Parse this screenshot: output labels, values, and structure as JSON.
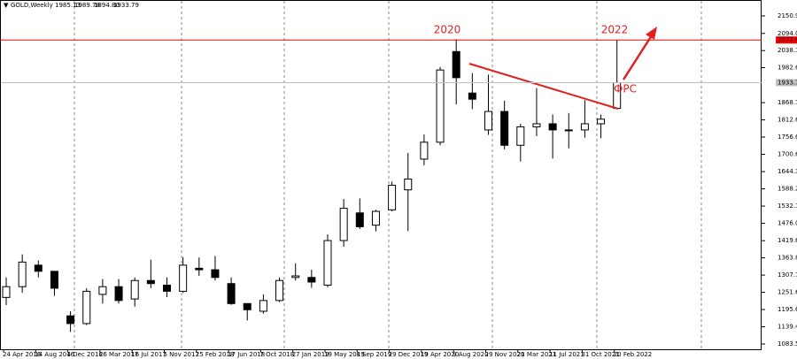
{
  "chart_data": {
    "type": "candlestick",
    "title": "GOLD,Weekly",
    "quote": [
      1985.13,
      1989.78,
      {
        "value": 1894.8,
        "label": "1894.80"
      },
      1933.79
    ],
    "categories": [
      "24 Apr 2016",
      null,
      "14 Aug 2016",
      null,
      "4 Dec 2016",
      null,
      "26 Mar 2017",
      null,
      "16 Jul 2017",
      null,
      "5 Nov 2017",
      null,
      "25 Feb 2018",
      null,
      "17 Jun 2018",
      null,
      "7 Oct 2018",
      null,
      "27 Jan 2019",
      null,
      "19 May 2019",
      null,
      "8 Sep 2019",
      null,
      "29 Dec 2019",
      null,
      "19 Apr 2020",
      null,
      "9 Aug 2020",
      null,
      "29 Nov 2020",
      null,
      "21 Mar 2021",
      null,
      "11 Jul 2021",
      null,
      "31 Oct 2021",
      null,
      "20 Feb 2022"
    ],
    "open": [
      1235,
      1270,
      1340,
      1320,
      1175,
      1150,
      1245,
      1270,
      1230,
      1290,
      1275,
      1255,
      1330,
      1325,
      1280,
      1215,
      1190,
      1225,
      1300,
      1300,
      1275,
      1420,
      1510,
      1470,
      1520,
      1585,
      1685,
      1740,
      2035,
      1900,
      1780,
      1840,
      1730,
      1790,
      1800,
      1780,
      1780,
      1800,
      1850
    ],
    "high": [
      1300,
      1375,
      1355,
      1320,
      1190,
      1265,
      1295,
      1295,
      1300,
      1358,
      1300,
      1366,
      1365,
      1370,
      1300,
      1215,
      1245,
      1300,
      1346,
      1325,
      1440,
      1555,
      1557,
      1520,
      1612,
      1705,
      1765,
      1985,
      2075,
      1965,
      1960,
      1875,
      1800,
      1916,
      1830,
      1835,
      1877,
      1830,
      2072
    ],
    "low": [
      1210,
      1250,
      1300,
      1240,
      1123,
      1145,
      1215,
      1215,
      1205,
      1265,
      1236,
      1250,
      1305,
      1290,
      1211,
      1160,
      1182,
      1220,
      1290,
      1266,
      1268,
      1400,
      1458,
      1450,
      1515,
      1451,
      1665,
      1730,
      1863,
      1848,
      1764,
      1717,
      1677,
      1760,
      1687,
      1720,
      1755,
      1753,
      1850
    ],
    "close": [
      1270,
      1350,
      1320,
      1265,
      1150,
      1255,
      1270,
      1225,
      1290,
      1280,
      1255,
      1340,
      1325,
      1300,
      1215,
      1195,
      1225,
      1290,
      1305,
      1285,
      1420,
      1525,
      1465,
      1515,
      1600,
      1620,
      1740,
      1975,
      1950,
      1880,
      1840,
      1730,
      1790,
      1800,
      1780,
      1780,
      1800,
      1815,
      1933.79
    ],
    "up_color": "#ffffff",
    "down_color": "#000000",
    "outline_color": "#000000",
    "ylim": [
      1066.3,
      2202.7
    ],
    "yticks": [
      {
        "value": 2150.9,
        "label": "2150.90"
      },
      {
        "value": 2094,
        "label": "2094.00"
      },
      {
        "value": 2038.1,
        "label": "2038.10"
      },
      {
        "value": 1982.6,
        "label": "1982.60"
      },
      {
        "value": 1868.7,
        "label": "1868.70"
      },
      {
        "value": 1812.65,
        "label": "1812.65"
      },
      {
        "value": 1756.65,
        "label": "1756.65"
      },
      {
        "value": 1700.65,
        "label": "1700.65"
      },
      {
        "value": 1644.35,
        "label": "1644.35"
      },
      {
        "value": 1588.2,
        "label": "1588.20"
      },
      {
        "value": 1532.15,
        "label": "1532.15"
      },
      {
        "value": 1476.05,
        "label": "1476.05"
      },
      {
        "value": 1419.6,
        "label": "1419.60"
      },
      {
        "value": 1363.85,
        "label": "1363.85"
      },
      {
        "value": 1307.75,
        "label": "1307.75"
      },
      {
        "value": 1251.65,
        "label": "1251.65"
      },
      {
        "value": 1195.6,
        "label": "1195.60"
      },
      {
        "value": 1139.45,
        "label": "1139.45"
      },
      {
        "value": 1083.55,
        "label": "1083.55"
      }
    ],
    "hlines": [
      {
        "value": 2072.67,
        "color": "#ff0000",
        "label_color": "#ffffff"
      },
      {
        "value": 1933.79,
        "color": "#c0c0c0",
        "label_color": "#000000"
      }
    ],
    "annotations": [
      "2020",
      "2022",
      "ФРС"
    ]
  }
}
